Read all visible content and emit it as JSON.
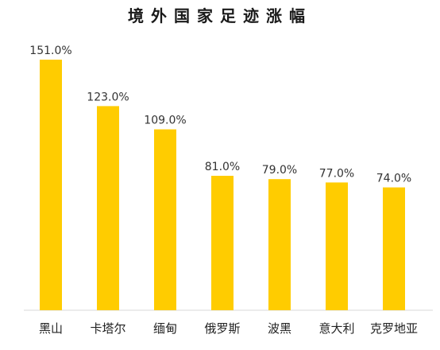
{
  "chart_data": {
    "type": "bar",
    "title": "境外国家足迹涨幅",
    "categories": [
      "黑山",
      "卡塔尔",
      "缅甸",
      "俄罗斯",
      "波黑",
      "意大利",
      "克罗地亚"
    ],
    "values": [
      151.0,
      123.0,
      109.0,
      81.0,
      79.0,
      77.0,
      74.0
    ],
    "value_labels": [
      "151.0%",
      "123.0%",
      "109.0%",
      "81.0%",
      "79.0%",
      "77.0%",
      "74.0%"
    ],
    "unit": "%",
    "ylim": [
      0,
      151.0
    ],
    "color": "#FFCC00",
    "grid": false,
    "legend": "none"
  }
}
